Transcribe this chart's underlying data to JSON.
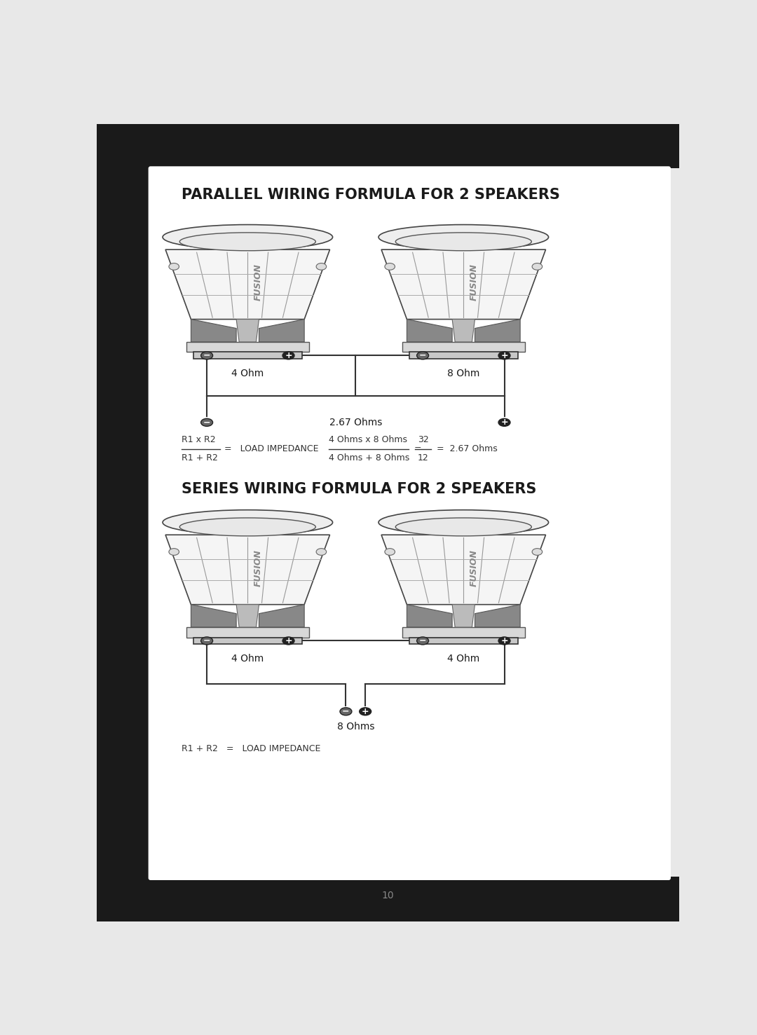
{
  "title1": "PARALLEL WIRING FORMULA FOR 2 SPEAKERS",
  "title2": "SERIES WIRING FORMULA FOR 2 SPEAKERS",
  "parallel_label1": "4 Ohm",
  "parallel_label2": "8 Ohm",
  "parallel_output": "2.67 Ohms",
  "series_label1": "4 Ohm",
  "series_label2": "4 Ohm",
  "series_output": "8 Ohms",
  "formula_par_num1": "R1 x R2",
  "formula_par_den1": "R1 + R2",
  "formula_par_mid": "=   LOAD IMPEDANCE",
  "formula_par_num2": "4 Ohms x 8 Ohms",
  "formula_par_den2": "4 Ohms + 8 Ohms",
  "formula_par_eq2": "=",
  "formula_par_frac_num": "32",
  "formula_par_frac_den": "12",
  "formula_par_result": "=  2.67 Ohms",
  "formula_ser": "R1 + R2   =   LOAD IMPEDANCE",
  "page_number": "10",
  "black_color": "#1a1a1a",
  "white_color": "#ffffff",
  "line_color": "#2a2a2a",
  "text_color": "#1a1a1a",
  "gray_light": "#f0f0f0",
  "gray_mid": "#cccccc",
  "speaker_body_fill": "#f2f2f2",
  "speaker_edge": "#444444"
}
